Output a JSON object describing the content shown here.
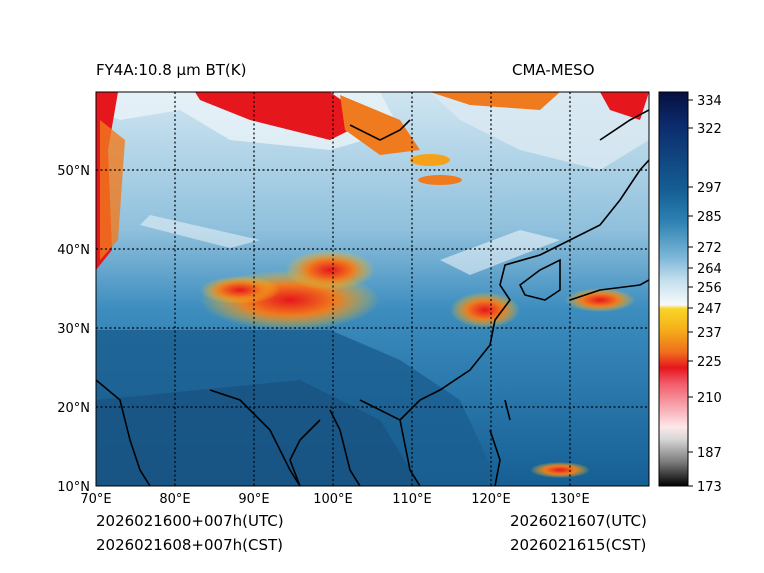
{
  "map": {
    "title": "FY4A:10.8 μm BT(K)",
    "source": "CMA-MESO",
    "valid_utc_left": "2026021600+007h(UTC)",
    "valid_cst_left": "2026021608+007h(CST)",
    "valid_utc_right": "2026021607(UTC)",
    "valid_cst_right": "2026021615(CST)",
    "lon_range": [
      70,
      140
    ],
    "lat_range": [
      10,
      60
    ],
    "lon_labels": [
      "70°E",
      "80°E",
      "90°E",
      "100°E",
      "110°E",
      "120°E",
      "130°E"
    ],
    "lat_labels": [
      "10°N",
      "20°N",
      "30°N",
      "40°N",
      "50°N"
    ]
  },
  "colorbar": {
    "labels": [
      "334",
      "322",
      "297",
      "285",
      "272",
      "264",
      "256",
      "247",
      "237",
      "225",
      "210",
      "187",
      "173"
    ],
    "colors": {
      "deep_blue": "#0a1a5a",
      "mid_blue": "#1f6fa5",
      "light_blue": "#9ecbe3",
      "white": "#f4f8fb",
      "yellow": "#f5c518",
      "orange": "#f07a1e",
      "red": "#e41a1c",
      "pink": "#f7b6c0",
      "gray": "#8a8a8a",
      "black": "#000000"
    }
  }
}
